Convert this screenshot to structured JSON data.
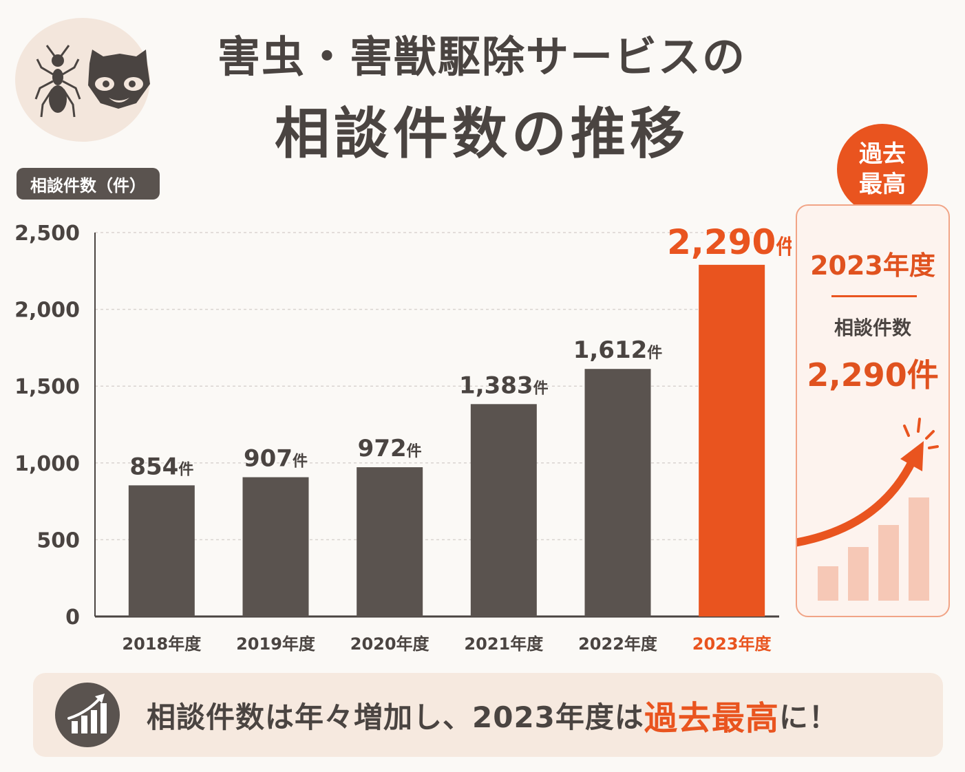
{
  "header": {
    "title_line1": "害虫・害獣駆除サービスの",
    "title_line2": "相談件数の推移",
    "icons": [
      "ant-icon",
      "raccoon-icon"
    ]
  },
  "unit_label": "相談件数（件）",
  "highlight": {
    "bubble_line1": "過去",
    "bubble_line2": "最高",
    "year": "2023年度",
    "label": "相談件数",
    "value": "2,290件"
  },
  "banner": {
    "text_before": "相談件数は年々増加し、2023年度は",
    "text_highlight": "過去最高",
    "text_after": "に！"
  },
  "colors": {
    "bar": "#5a534f",
    "highlight": "#e9541f",
    "text": "#4a4441",
    "grid": "#d9d4d0"
  },
  "chart_data": {
    "type": "bar",
    "categories": [
      "2018年度",
      "2019年度",
      "2020年度",
      "2021年度",
      "2022年度",
      "2023年度"
    ],
    "values": [
      854,
      907,
      972,
      1383,
      1612,
      2290
    ],
    "value_labels": [
      "854",
      "907",
      "972",
      "1,383",
      "1,612",
      "2,290"
    ],
    "value_suffix": "件",
    "highlight_index": 5,
    "ylim": [
      0,
      2500
    ],
    "yticks": [
      0,
      500,
      1000,
      1500,
      2000,
      2500
    ],
    "ytick_labels": [
      "0",
      "500",
      "1,000",
      "1,500",
      "2,000",
      "2,500"
    ],
    "ylabel": "相談件数（件）",
    "grid": true
  }
}
